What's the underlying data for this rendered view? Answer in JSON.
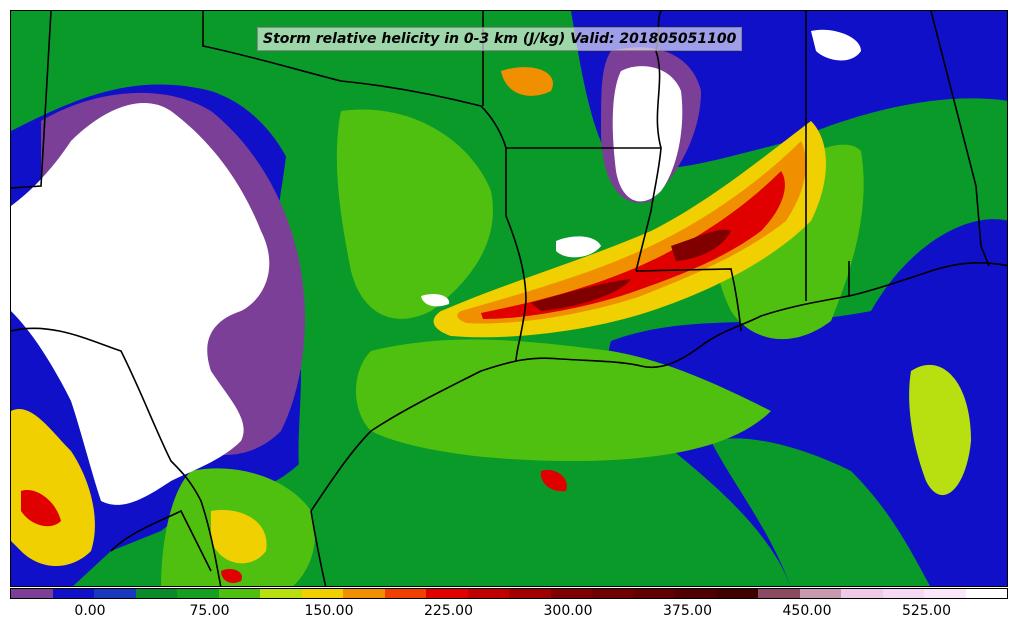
{
  "title": "Storm relative helicity in 0-3 km (J/kg) Valid: 201805051100",
  "colorbar": {
    "colors": [
      "#7b3f98",
      "#1010c8",
      "#1a37c0",
      "#0a8a2a",
      "#14a020",
      "#50c010",
      "#b8e010",
      "#f0d000",
      "#f09000",
      "#f04000",
      "#e00000",
      "#c00000",
      "#a00000",
      "#800000",
      "#700000",
      "#600000",
      "#500000",
      "#400000",
      "#8a4a62",
      "#c89ab0",
      "#f0c8e8",
      "#f4d8f4",
      "#fae8fa",
      "#ffffff"
    ],
    "tick_labels": [
      "0.00",
      "75.00",
      "150.00",
      "225.00",
      "300.00",
      "375.00",
      "450.00",
      "525.00"
    ]
  },
  "map_colors": {
    "ocean": "#1010c8",
    "low": "#7b3f98",
    "green": "#0a9a2a",
    "lightgreen": "#50c010",
    "yellow": "#f0d000",
    "orange": "#f09000",
    "red": "#e00000",
    "darkred": "#800000",
    "missing": "#ffffff",
    "border": "#000000"
  }
}
